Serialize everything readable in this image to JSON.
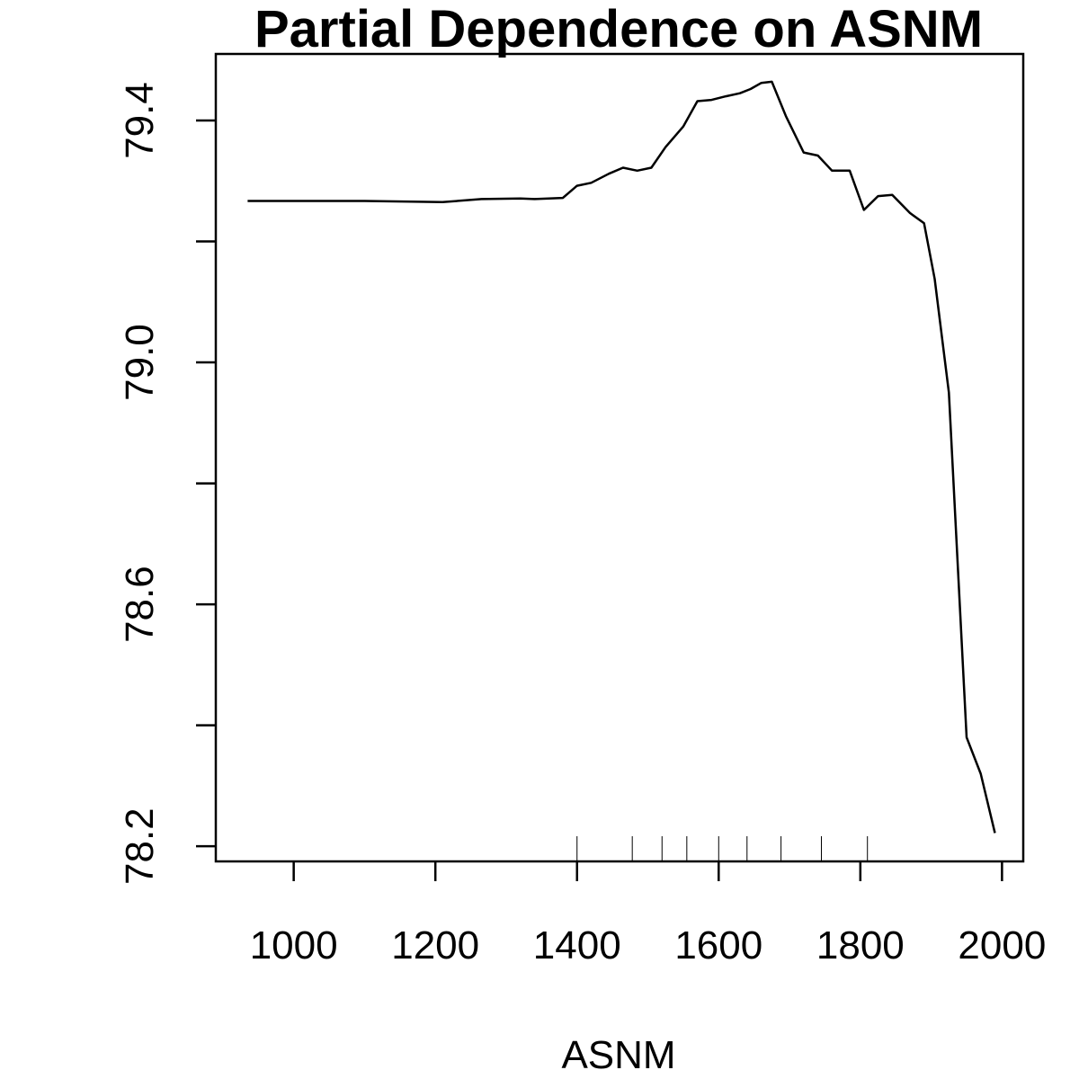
{
  "chart_data": {
    "type": "line",
    "title": "Partial Dependence on ASNM",
    "xlabel": "ASNM",
    "ylabel": "",
    "xlim": [
      890,
      2030
    ],
    "ylim": [
      78.175,
      79.51
    ],
    "x_ticks": [
      1000,
      1200,
      1400,
      1600,
      1800,
      2000
    ],
    "x_tick_labels": [
      "1000",
      "1200",
      "1400",
      "1600",
      "1800",
      "2000"
    ],
    "y_ticks": [
      78.2,
      78.4,
      78.6,
      78.8,
      79.0,
      79.2,
      79.4
    ],
    "y_tick_labels": [
      "78.2",
      "",
      "78.6",
      "",
      "79.0",
      "",
      "79.4"
    ],
    "grid": false,
    "series": [
      {
        "x": [
          935,
          1000,
          1100,
          1210,
          1265,
          1320,
          1340,
          1380,
          1400,
          1420,
          1445,
          1465,
          1485,
          1505,
          1525,
          1550,
          1570,
          1590,
          1610,
          1630,
          1645,
          1660,
          1675,
          1695,
          1720,
          1740,
          1760,
          1785,
          1805,
          1825,
          1845,
          1870,
          1890,
          1905,
          1925,
          1950,
          1970,
          1990
        ],
        "y": [
          79.267,
          79.267,
          79.267,
          79.265,
          79.27,
          79.271,
          79.27,
          79.272,
          79.292,
          79.297,
          79.312,
          79.322,
          79.317,
          79.322,
          79.356,
          79.39,
          79.432,
          79.434,
          79.44,
          79.445,
          79.452,
          79.462,
          79.464,
          79.407,
          79.347,
          79.342,
          79.317,
          79.317,
          79.252,
          79.275,
          79.277,
          79.247,
          79.23,
          79.138,
          78.95,
          78.38,
          78.32,
          78.222
        ]
      }
    ],
    "rug_x": [
      1400,
      1478,
      1520,
      1555,
      1600,
      1640,
      1688,
      1745,
      1810
    ]
  }
}
